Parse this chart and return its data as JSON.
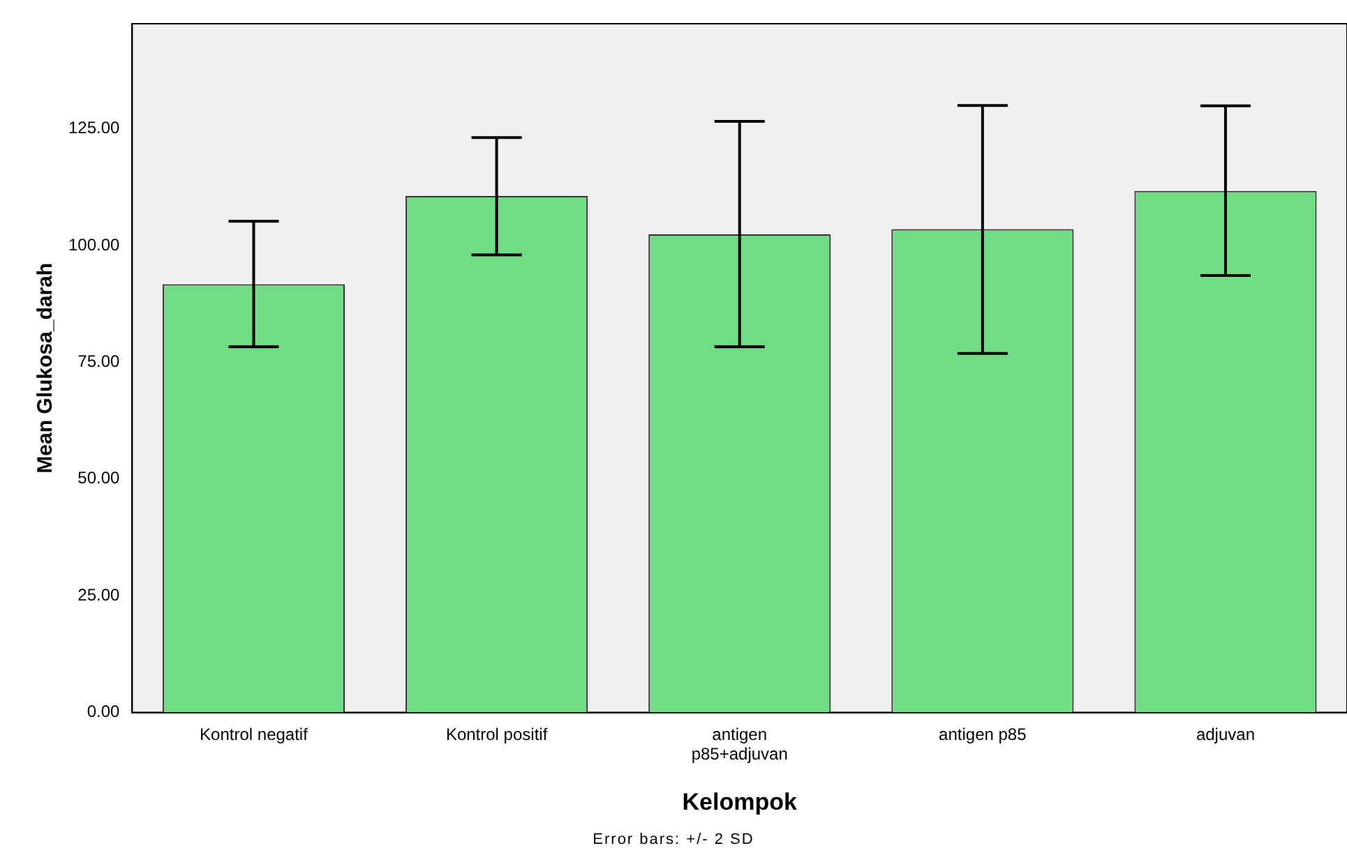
{
  "chart_data": {
    "type": "bar",
    "xlabel": "Kelompok",
    "ylabel": "Mean Glukosa_darah",
    "categories": [
      "Kontrol negatif",
      "Kontrol positif",
      "antigen\np85+adjuvan",
      "antigen p85",
      "adjuvan"
    ],
    "values": [
      91.7,
      110.6,
      102.4,
      103.5,
      111.7
    ],
    "errors": [
      [
        78.3,
        105.2
      ],
      [
        98.0,
        123.1
      ],
      [
        78.3,
        126.6
      ],
      [
        76.9,
        130.0
      ],
      [
        93.6,
        129.9
      ]
    ],
    "color": "#70dc84",
    "ylim": [
      0,
      147.5
    ],
    "yticks": [
      {
        "value": 0,
        "label": "0.00"
      },
      {
        "value": 25,
        "label": "25.00"
      },
      {
        "value": 50,
        "label": "50.00"
      },
      {
        "value": 75,
        "label": "75.00"
      },
      {
        "value": 100,
        "label": "100.00"
      },
      {
        "value": 125,
        "label": "125.00"
      }
    ],
    "grid": false,
    "legend": false,
    "annotations": [
      "Error bars: +/- 2 SD"
    ]
  }
}
